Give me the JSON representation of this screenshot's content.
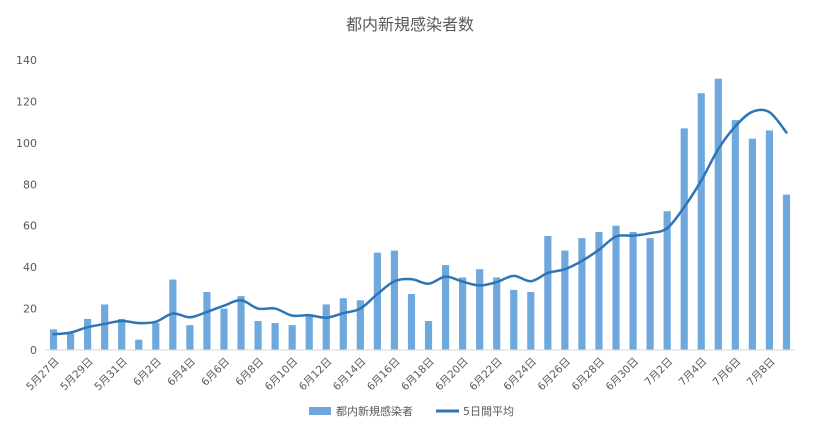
{
  "chart_data": {
    "type": "bar",
    "title": "都内新規感染者数",
    "xlabel": "",
    "ylabel": "",
    "ylim": [
      0,
      140
    ],
    "yticks": [
      0,
      20,
      40,
      60,
      80,
      100,
      120,
      140
    ],
    "grid": false,
    "legend_position": "bottom",
    "categories": [
      "5月27日",
      "5月28日",
      "5月29日",
      "5月30日",
      "5月31日",
      "6月1日",
      "6月2日",
      "6月3日",
      "6月4日",
      "6月5日",
      "6月6日",
      "6月7日",
      "6月8日",
      "6月9日",
      "6月10日",
      "6月11日",
      "6月12日",
      "6月13日",
      "6月14日",
      "6月15日",
      "6月16日",
      "6月17日",
      "6月18日",
      "6月19日",
      "6月20日",
      "6月21日",
      "6月22日",
      "6月23日",
      "6月24日",
      "6月25日",
      "6月26日",
      "6月27日",
      "6月28日",
      "6月29日",
      "6月30日",
      "7月1日",
      "7月2日",
      "7月3日",
      "7月4日",
      "7月5日",
      "7月6日",
      "7月7日",
      "7月8日",
      "7月9日"
    ],
    "tick_labels": [
      "5月27日",
      "",
      "5月29日",
      "",
      "5月31日",
      "",
      "6月2日",
      "",
      "6月4日",
      "",
      "6月6日",
      "",
      "6月8日",
      "",
      "6月10日",
      "",
      "6月12日",
      "",
      "6月14日",
      "",
      "6月16日",
      "",
      "6月18日",
      "",
      "6月20日",
      "",
      "6月22日",
      "",
      "6月24日",
      "",
      "6月26日",
      "",
      "6月28日",
      "",
      "6月30日",
      "",
      "7月2日",
      "",
      "7月4日",
      "",
      "7月6日",
      "",
      "7月8日",
      ""
    ],
    "series": [
      {
        "name": "都内新規感染者",
        "kind": "bar",
        "color": "#6fa8dc",
        "values": [
          10,
          8,
          15,
          22,
          15,
          5,
          13,
          34,
          12,
          28,
          20,
          26,
          14,
          13,
          12,
          17,
          22,
          25,
          24,
          47,
          48,
          27,
          14,
          41,
          35,
          39,
          35,
          29,
          28,
          55,
          48,
          54,
          57,
          60,
          57,
          54,
          67,
          107,
          124,
          131,
          111,
          102,
          106,
          75
        ]
      },
      {
        "name": "5日間平均",
        "kind": "line",
        "color": "#2e75b6",
        "values": [
          7.6,
          8.4,
          11.0,
          12.6,
          14.0,
          13.0,
          13.6,
          17.6,
          15.8,
          18.4,
          21.4,
          24.0,
          20.0,
          20.0,
          16.6,
          16.8,
          15.6,
          17.8,
          20.0,
          27.0,
          33.2,
          34.2,
          32.0,
          35.4,
          33.0,
          31.2,
          32.8,
          35.8,
          33.2,
          37.2,
          39.0,
          43.0,
          48.4,
          54.8,
          55.2,
          56.4,
          58.8,
          69.0,
          81.8,
          97.0,
          108.0,
          115.0,
          114.8,
          105.0
        ]
      }
    ]
  }
}
